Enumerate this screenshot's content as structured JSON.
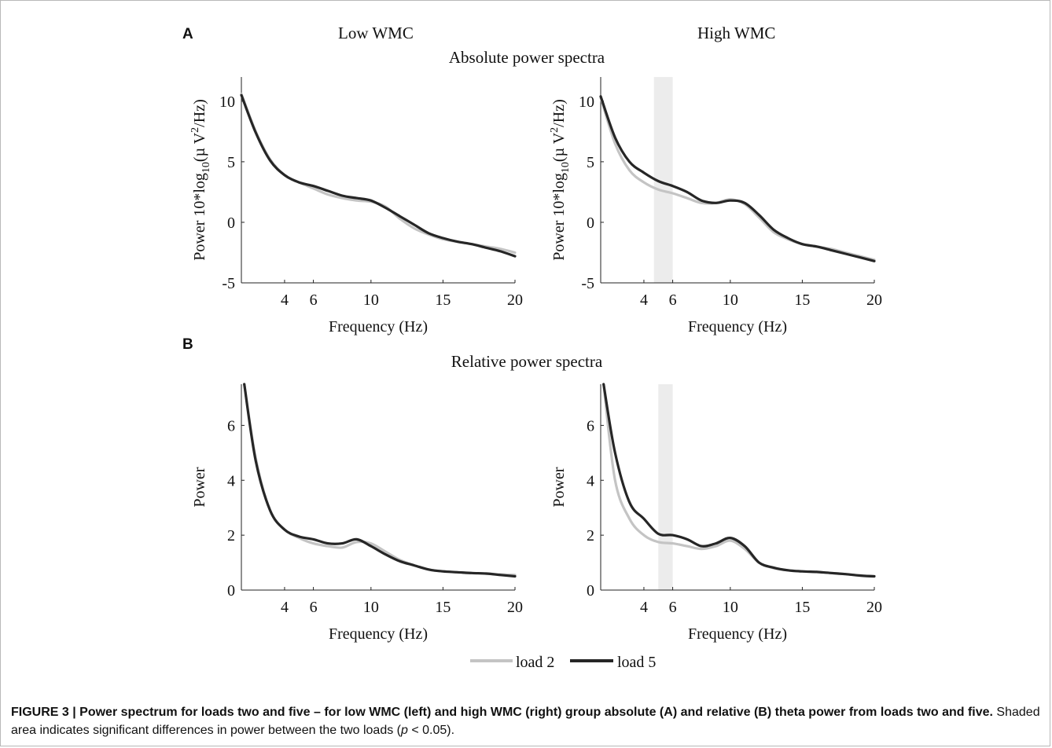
{
  "figure": {
    "panel_a_letter": "A",
    "panel_b_letter": "B",
    "col_low": "Low WMC",
    "col_high": "High WMC",
    "row_a_title": "Absolute power spectra",
    "row_b_title": "Relative power spectra",
    "legend": {
      "load2": "load 2",
      "load5": "load 5"
    },
    "colors": {
      "load2": "#c4c4c4",
      "load5": "#262626",
      "shade": "#ececec"
    }
  },
  "caption": {
    "bold": "FIGURE 3 | Power spectrum for loads two and five – for low WMC (left) and high WMC (right) group absolute (A) and relative (B) theta power from loads two and five.",
    "rest_pre": " Shaded area indicates significant differences in power between the two loads (",
    "rest_p": "p",
    "rest_post": " < 0.05)."
  },
  "chart_data": [
    {
      "type": "line",
      "panel": "A-low",
      "xlabel": "Frequency (Hz)",
      "ylabel_parts": [
        "Power 10*log",
        "10",
        "(µ V",
        "2",
        "/Hz)"
      ],
      "xlim": [
        1,
        20
      ],
      "ylim": [
        -5,
        12
      ],
      "xticks": [
        4,
        6,
        10,
        15,
        20
      ],
      "yticks": [
        -5,
        0,
        5,
        10
      ],
      "shade": null,
      "series": [
        {
          "name": "load 2",
          "x": [
            1,
            2,
            3,
            4,
            5,
            6,
            7,
            8,
            9,
            10,
            11,
            12,
            13,
            14,
            15,
            16,
            17,
            18,
            19,
            20
          ],
          "y": [
            10.6,
            7.5,
            5.2,
            3.9,
            3.3,
            2.8,
            2.3,
            2.0,
            1.8,
            1.7,
            1.3,
            0.3,
            -0.5,
            -1.0,
            -1.4,
            -1.6,
            -1.8,
            -2.0,
            -2.2,
            -2.5
          ]
        },
        {
          "name": "load 5",
          "x": [
            1,
            2,
            3,
            4,
            5,
            6,
            7,
            8,
            9,
            10,
            11,
            12,
            13,
            14,
            15,
            16,
            17,
            18,
            19,
            20
          ],
          "y": [
            10.5,
            7.4,
            5.1,
            3.9,
            3.3,
            3.0,
            2.6,
            2.2,
            2.0,
            1.8,
            1.2,
            0.5,
            -0.2,
            -0.9,
            -1.3,
            -1.6,
            -1.8,
            -2.1,
            -2.4,
            -2.8
          ]
        }
      ]
    },
    {
      "type": "line",
      "panel": "A-high",
      "xlabel": "Frequency (Hz)",
      "ylabel_parts": [
        "Power 10*log",
        "10",
        "(µ V",
        "2",
        "/Hz)"
      ],
      "xlim": [
        1,
        20
      ],
      "ylim": [
        -5,
        12
      ],
      "xticks": [
        4,
        6,
        10,
        15,
        20
      ],
      "yticks": [
        -5,
        0,
        5,
        10
      ],
      "shade": [
        4.7,
        6.0
      ],
      "series": [
        {
          "name": "load 2",
          "x": [
            1,
            2,
            3,
            4,
            5,
            6,
            7,
            8,
            9,
            10,
            11,
            12,
            13,
            14,
            15,
            16,
            17,
            18,
            19,
            20
          ],
          "y": [
            10.3,
            6.5,
            4.3,
            3.3,
            2.7,
            2.4,
            2.0,
            1.6,
            1.6,
            1.9,
            1.5,
            0.4,
            -0.8,
            -1.4,
            -1.8,
            -2.0,
            -2.2,
            -2.5,
            -2.8,
            -3.1
          ]
        },
        {
          "name": "load 5",
          "x": [
            1,
            2,
            3,
            4,
            5,
            6,
            7,
            8,
            9,
            10,
            11,
            12,
            13,
            14,
            15,
            16,
            17,
            18,
            19,
            20
          ],
          "y": [
            10.4,
            7.0,
            5.0,
            4.1,
            3.4,
            3.0,
            2.5,
            1.8,
            1.6,
            1.8,
            1.6,
            0.6,
            -0.6,
            -1.3,
            -1.8,
            -2.0,
            -2.3,
            -2.6,
            -2.9,
            -3.2
          ]
        }
      ]
    },
    {
      "type": "line",
      "panel": "B-low",
      "xlabel": "Frequency (Hz)",
      "ylabel": "Power",
      "xlim": [
        1,
        20
      ],
      "ylim": [
        0,
        7.5
      ],
      "xticks": [
        4,
        6,
        10,
        15,
        20
      ],
      "yticks": [
        0,
        2,
        4,
        6
      ],
      "shade": null,
      "series": [
        {
          "name": "load 2",
          "x": [
            1.2,
            2,
            3,
            4,
            5,
            6,
            7,
            8,
            9,
            10,
            11,
            12,
            13,
            14,
            15,
            16,
            17,
            18,
            19,
            20
          ],
          "y": [
            7.5,
            4.8,
            2.9,
            2.2,
            1.9,
            1.7,
            1.6,
            1.55,
            1.75,
            1.7,
            1.4,
            1.1,
            0.9,
            0.75,
            0.68,
            0.65,
            0.62,
            0.6,
            0.57,
            0.55
          ]
        },
        {
          "name": "load 5",
          "x": [
            1.2,
            2,
            3,
            4,
            5,
            6,
            7,
            8,
            9,
            10,
            11,
            12,
            13,
            14,
            15,
            16,
            17,
            18,
            19,
            20
          ],
          "y": [
            7.5,
            4.7,
            2.9,
            2.2,
            1.95,
            1.85,
            1.7,
            1.7,
            1.85,
            1.6,
            1.3,
            1.05,
            0.9,
            0.75,
            0.68,
            0.65,
            0.62,
            0.6,
            0.55,
            0.5
          ]
        }
      ]
    },
    {
      "type": "line",
      "panel": "B-high",
      "xlabel": "Frequency (Hz)",
      "ylabel": "Power",
      "xlim": [
        1,
        20
      ],
      "ylim": [
        0,
        7.5
      ],
      "xticks": [
        4,
        6,
        10,
        15,
        20
      ],
      "yticks": [
        0,
        2,
        4,
        6
      ],
      "shade": [
        5.0,
        6.0
      ],
      "series": [
        {
          "name": "load 2",
          "x": [
            1.2,
            2,
            3,
            4,
            5,
            6,
            7,
            8,
            9,
            10,
            11,
            12,
            13,
            14,
            15,
            16,
            17,
            18,
            19,
            20
          ],
          "y": [
            7.5,
            4.0,
            2.6,
            2.0,
            1.75,
            1.7,
            1.6,
            1.5,
            1.6,
            1.8,
            1.5,
            1.0,
            0.8,
            0.72,
            0.68,
            0.66,
            0.62,
            0.58,
            0.53,
            0.5
          ]
        },
        {
          "name": "load 5",
          "x": [
            1.2,
            2,
            3,
            4,
            5,
            6,
            7,
            8,
            9,
            10,
            11,
            12,
            13,
            14,
            15,
            16,
            17,
            18,
            19,
            20
          ],
          "y": [
            7.5,
            5.0,
            3.2,
            2.6,
            2.05,
            2.0,
            1.85,
            1.6,
            1.7,
            1.9,
            1.6,
            1.0,
            0.82,
            0.72,
            0.68,
            0.66,
            0.62,
            0.58,
            0.53,
            0.5
          ]
        }
      ]
    }
  ]
}
